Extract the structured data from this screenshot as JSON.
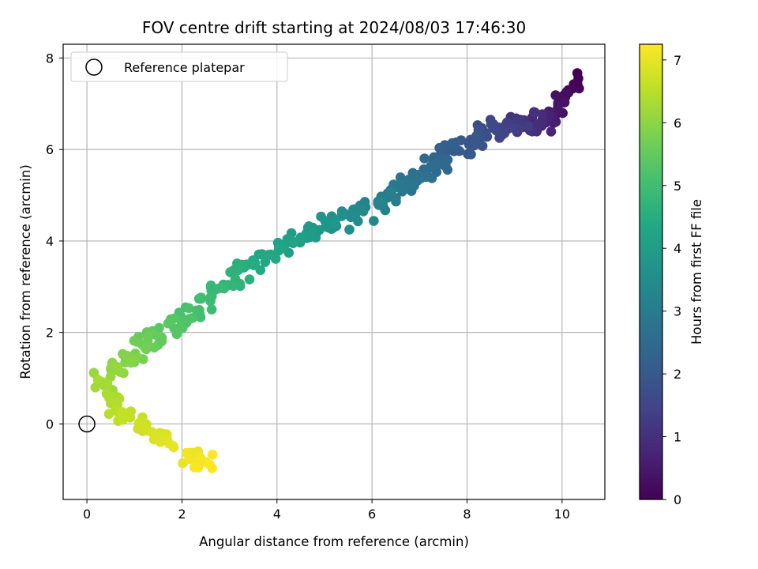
{
  "chart_data": {
    "type": "scatter",
    "title": "FOV centre drift starting at 2024/08/03 17:46:30",
    "xlabel": "Angular distance from reference (arcmin)",
    "ylabel": "Rotation from reference (arcmin)",
    "xlim": [
      -0.5,
      10.9
    ],
    "ylim": [
      -1.65,
      8.3
    ],
    "xticks": [
      0,
      2,
      4,
      6,
      8,
      10
    ],
    "yticks": [
      0,
      2,
      4,
      6,
      8
    ],
    "grid": true,
    "colormap": "viridis",
    "colorbar": {
      "label": "Hours from first FF file",
      "range": [
        0,
        7.25
      ],
      "ticks": [
        0,
        1,
        2,
        3,
        4,
        5,
        6,
        7
      ]
    },
    "legend": {
      "placement": "top-left",
      "entries": [
        {
          "label": "Reference platepar",
          "marker": "open-circle"
        }
      ]
    },
    "reference_point": {
      "x": 0,
      "y": 0
    },
    "anchors": [
      {
        "t": 0.0,
        "x": 10.3,
        "y": 7.5
      },
      {
        "t": 0.3,
        "x": 10.0,
        "y": 7.0
      },
      {
        "t": 0.6,
        "x": 9.7,
        "y": 6.6
      },
      {
        "t": 1.0,
        "x": 9.3,
        "y": 6.6
      },
      {
        "t": 1.4,
        "x": 8.8,
        "y": 6.5
      },
      {
        "t": 1.8,
        "x": 8.2,
        "y": 6.2
      },
      {
        "t": 2.2,
        "x": 7.6,
        "y": 6.0
      },
      {
        "t": 2.6,
        "x": 7.1,
        "y": 5.5
      },
      {
        "t": 3.0,
        "x": 6.4,
        "y": 5.0
      },
      {
        "t": 3.4,
        "x": 5.7,
        "y": 4.6
      },
      {
        "t": 3.8,
        "x": 4.9,
        "y": 4.3
      },
      {
        "t": 4.2,
        "x": 4.0,
        "y": 3.8
      },
      {
        "t": 4.6,
        "x": 3.2,
        "y": 3.3
      },
      {
        "t": 5.0,
        "x": 2.4,
        "y": 2.6
      },
      {
        "t": 5.4,
        "x": 1.6,
        "y": 2.0
      },
      {
        "t": 5.8,
        "x": 1.0,
        "y": 1.5
      },
      {
        "t": 6.2,
        "x": 0.3,
        "y": 0.9
      },
      {
        "t": 6.5,
        "x": 0.7,
        "y": 0.2
      },
      {
        "t": 6.8,
        "x": 1.4,
        "y": -0.2
      },
      {
        "t": 7.0,
        "x": 2.0,
        "y": -0.7
      },
      {
        "t": 7.25,
        "x": 2.6,
        "y": -0.9
      }
    ],
    "series": [
      {
        "count": 420,
        "t_range": [
          0,
          7.25
        ],
        "x_scatter": 0.35,
        "y_scatter": 0.3
      }
    ]
  }
}
